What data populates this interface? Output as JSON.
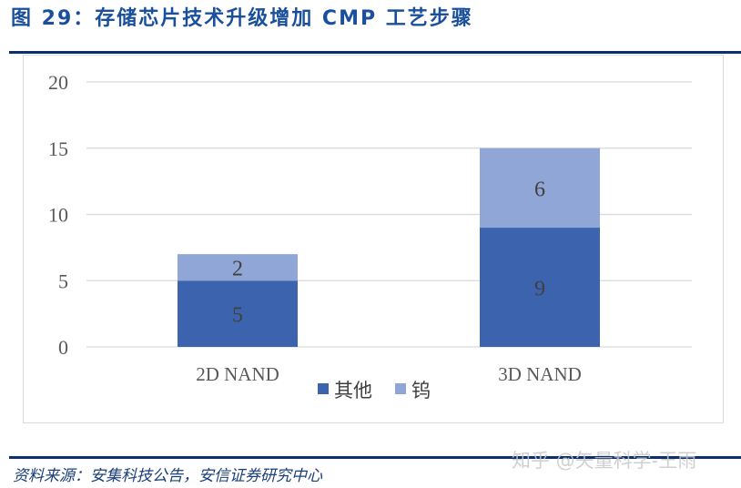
{
  "title": "图 29：存储芯片技术升级增加 CMP 工艺步骤",
  "source": "资料来源：安集科技公告，安信证券研究中心",
  "watermark": "知乎 @矢量科学-王雨",
  "chart_data": {
    "type": "bar",
    "stacked": true,
    "categories": [
      "2D NAND",
      "3D NAND"
    ],
    "series": [
      {
        "name": "其他",
        "values": [
          5,
          9
        ],
        "color": "#3c63ad"
      },
      {
        "name": "钨",
        "values": [
          2,
          6
        ],
        "color": "#8fa6d6"
      }
    ],
    "ylim": [
      0,
      20
    ],
    "yticks": [
      0,
      5,
      10,
      15,
      20
    ],
    "grid": true,
    "legend": "bottom"
  }
}
